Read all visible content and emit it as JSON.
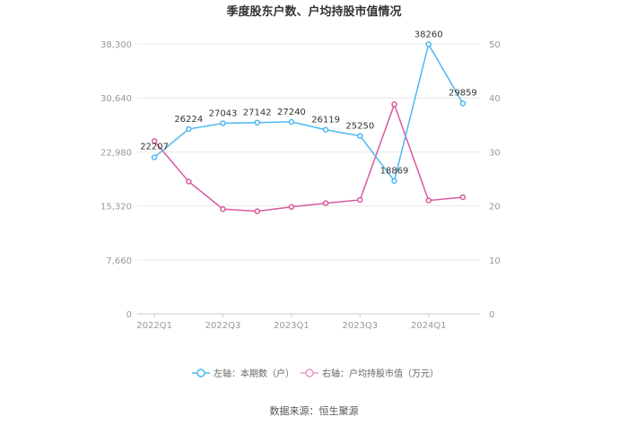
{
  "chart_data": {
    "type": "line",
    "title": "季度股东户数、户均持股市值情况",
    "categories": [
      "2022Q1",
      "2022Q2",
      "2022Q3",
      "2022Q4",
      "2023Q1",
      "2023Q2",
      "2023Q3",
      "2023Q4",
      "2024Q1",
      "2024Q2"
    ],
    "x_tick_labels": [
      "2022Q1",
      "2022Q3",
      "2023Q1",
      "2023Q3",
      "2024Q1"
    ],
    "y_left": {
      "ticks": [
        "0",
        "7,660",
        "15,320",
        "22,980",
        "30,640",
        "38,300"
      ],
      "min": 0,
      "max": 38300
    },
    "y_right": {
      "ticks": [
        "0",
        "10",
        "20",
        "30",
        "40",
        "50"
      ],
      "min": 0,
      "max": 50
    },
    "series": [
      {
        "name": "左轴：本期数（户）",
        "axis": "left",
        "color": "#4db8f0",
        "values": [
          22207,
          26224,
          27043,
          27142,
          27240,
          26119,
          25250,
          18869,
          38260,
          29859
        ],
        "labels": [
          "22207",
          "26224",
          "27043",
          "27142",
          "27240",
          "26119",
          "25250",
          "18869",
          "38260",
          "29859"
        ]
      },
      {
        "name": "右轴：户均持股市值（万元）",
        "axis": "right",
        "color": "#d9589f",
        "values": [
          32.0,
          24.5,
          19.4,
          19.0,
          19.8,
          20.5,
          21.1,
          38.8,
          21.0,
          21.6
        ]
      }
    ],
    "grid": true,
    "legend_position": "bottom"
  },
  "source_text": "数据来源：恒生聚源"
}
